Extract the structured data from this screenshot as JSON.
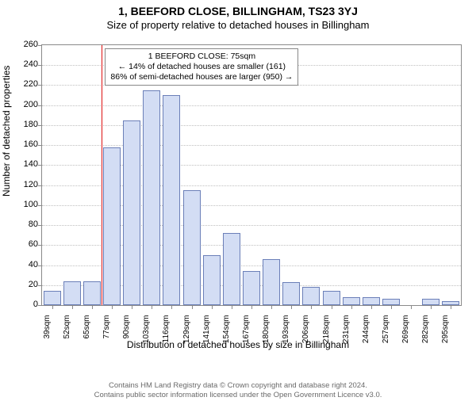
{
  "header": {
    "title_line1": "1, BEEFORD CLOSE, BILLINGHAM, TS23 3YJ",
    "title_line2": "Size of property relative to detached houses in Billingham"
  },
  "chart": {
    "type": "histogram",
    "ylabel": "Number of detached properties",
    "xlabel": "Distribution of detached houses by size in Billingham",
    "ylim": [
      0,
      260
    ],
    "ytick_step": 20,
    "x_categories": [
      "39sqm",
      "52sqm",
      "65sqm",
      "77sqm",
      "90sqm",
      "103sqm",
      "116sqm",
      "129sqm",
      "141sqm",
      "154sqm",
      "167sqm",
      "180sqm",
      "193sqm",
      "206sqm",
      "218sqm",
      "231sqm",
      "244sqm",
      "257sqm",
      "269sqm",
      "282sqm",
      "295sqm"
    ],
    "values": [
      14,
      24,
      24,
      158,
      185,
      215,
      210,
      115,
      50,
      72,
      34,
      46,
      23,
      18,
      14,
      8,
      8,
      6,
      0,
      6,
      4
    ],
    "bar_fill": "#d3ddf4",
    "bar_stroke": "#6b7fb8",
    "grid_color": "#bfbfbf",
    "border_color": "#8a8a8a",
    "background_color": "#ffffff",
    "bar_width_ratio": 0.88,
    "marker": {
      "x_index_after": 3,
      "color": "#d11",
      "box_lines": [
        "1 BEEFORD CLOSE: 75sqm",
        "← 14% of detached houses are smaller (161)",
        "86% of semi-detached houses are larger (950) →"
      ]
    },
    "fontsize_title": 14,
    "fontsize_subtitle": 13,
    "fontsize_axis_label": 12,
    "fontsize_tick": 11,
    "fontsize_annot": 10.5
  },
  "footer": {
    "line1": "Contains HM Land Registry data © Crown copyright and database right 2024.",
    "line2": "Contains public sector information licensed under the Open Government Licence v3.0."
  }
}
